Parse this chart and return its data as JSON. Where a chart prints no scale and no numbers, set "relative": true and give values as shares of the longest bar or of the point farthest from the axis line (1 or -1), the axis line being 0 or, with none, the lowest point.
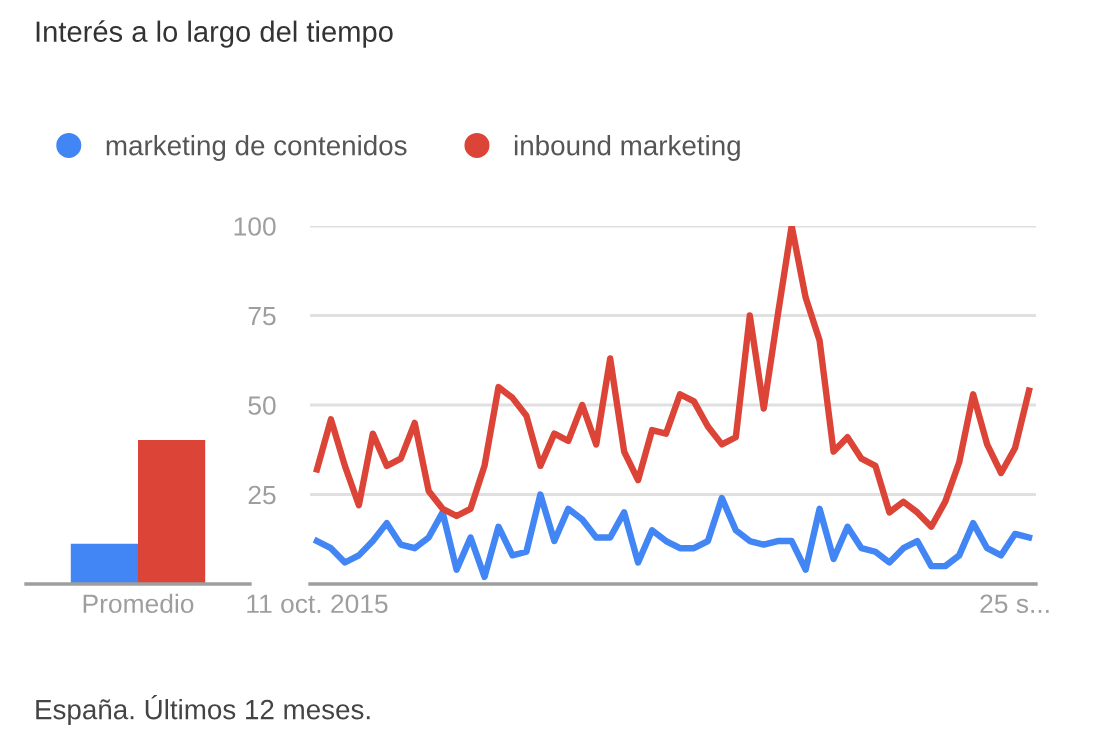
{
  "chart_data": [
    {
      "type": "bar",
      "title": "Interés a lo largo del tiempo",
      "categories": [
        "Promedio"
      ],
      "relative": true,
      "series": [
        {
          "color": "#4285f4",
          "values": [
            0.28
          ]
        },
        {
          "color": "#db4437",
          "values": [
            1
          ]
        }
      ]
    },
    {
      "type": "line",
      "categories": [
        "11 oct. 2015",
        null,
        null,
        null,
        null,
        null,
        null,
        null,
        null,
        null,
        null,
        null,
        null,
        null,
        null,
        null,
        null,
        null,
        null,
        null,
        null,
        null,
        null,
        null,
        null,
        null,
        null,
        null,
        null,
        null,
        null,
        null,
        null,
        null,
        null,
        null,
        null,
        null,
        null,
        null,
        null,
        null,
        null,
        null,
        null,
        null,
        null,
        null,
        null,
        null,
        "25 s...",
        null
      ],
      "ylim": [
        0,
        100
      ],
      "yticks": [
        25,
        50,
        75,
        100
      ],
      "grid": "y",
      "legend": "top",
      "marker": "none",
      "line_style": "solid",
      "annotations": [
        "España. Últimos 12 meses."
      ],
      "series": [
        {
          "name": "marketing de contenidos",
          "color": "#4285f4",
          "values": [
            12,
            10,
            6,
            8,
            12,
            17,
            11,
            10,
            13,
            20,
            4,
            13,
            2,
            16,
            8,
            9,
            25,
            12,
            21,
            18,
            13,
            13,
            20,
            6,
            15,
            12,
            10,
            10,
            12,
            24,
            15,
            12,
            11,
            12,
            12,
            4,
            21,
            7,
            16,
            10,
            9,
            6,
            10,
            12,
            5,
            5,
            8,
            17,
            10,
            8,
            14,
            13
          ]
        },
        {
          "name": "inbound marketing",
          "color": "#db4437",
          "values": [
            32,
            46,
            33,
            22,
            42,
            33,
            35,
            45,
            26,
            21,
            19,
            21,
            33,
            55,
            52,
            47,
            33,
            42,
            40,
            50,
            39,
            63,
            37,
            29,
            43,
            42,
            53,
            51,
            44,
            39,
            41,
            75,
            49,
            75,
            100,
            80,
            68,
            37,
            41,
            35,
            33,
            20,
            23,
            20,
            16,
            23,
            34,
            53,
            39,
            31,
            38,
            54
          ]
        }
      ]
    }
  ]
}
